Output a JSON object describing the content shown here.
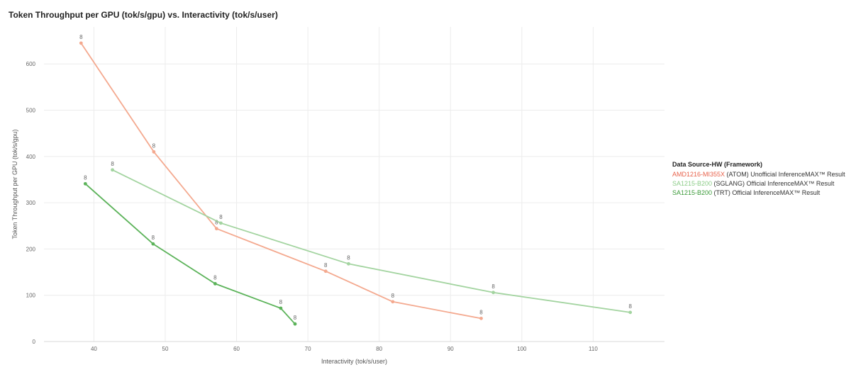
{
  "chart_data": {
    "type": "line",
    "title": "Token Throughput per GPU (tok/s/gpu) vs. Interactivity (tok/s/user)",
    "xlabel": "Interactivity (tok/s/user)",
    "ylabel": "Token Throughput per GPU (tok/s/gpu)",
    "xlim": [
      33,
      120
    ],
    "ylim": [
      0,
      680
    ],
    "x_ticks": [
      40,
      50,
      60,
      70,
      80,
      90,
      100,
      110
    ],
    "y_ticks": [
      0,
      100,
      200,
      300,
      400,
      500,
      600
    ],
    "grid": true,
    "legend_position": "right",
    "legend_title": "Data Source-HW (Framework)",
    "series": [
      {
        "name": "AMD1216-MI355X",
        "suffix": " (ATOM) Unofficial InferenceMAX™ Result",
        "color": "#f4a98f",
        "name_color": "#e8614a",
        "point_labels": [
          "8",
          "8",
          "8",
          "8",
          "8",
          "8"
        ],
        "x": [
          38.2,
          48.4,
          57.2,
          72.5,
          81.9,
          94.3
        ],
        "y": [
          645,
          410,
          244,
          152,
          86,
          50
        ]
      },
      {
        "name": "SA1215-B200",
        "suffix": " (SGLANG) Official InferenceMAX™ Result",
        "color": "#a3d4a0",
        "name_color": "#8ccc88",
        "point_labels": [
          "8",
          "8",
          "8",
          "8",
          "8"
        ],
        "x": [
          42.6,
          57.8,
          75.7,
          96.0,
          115.2
        ],
        "y": [
          371,
          256,
          168,
          106,
          63
        ]
      },
      {
        "name": "SA1215-B200",
        "suffix": " (TRT) Official InferenceMAX™ Result",
        "color": "#5cb35a",
        "name_color": "#3a9a38",
        "point_labels": [
          "8",
          "8",
          "8",
          "8",
          "8"
        ],
        "x": [
          38.8,
          48.3,
          57.0,
          66.2,
          68.2
        ],
        "y": [
          341,
          211,
          125,
          72,
          38
        ]
      }
    ]
  }
}
